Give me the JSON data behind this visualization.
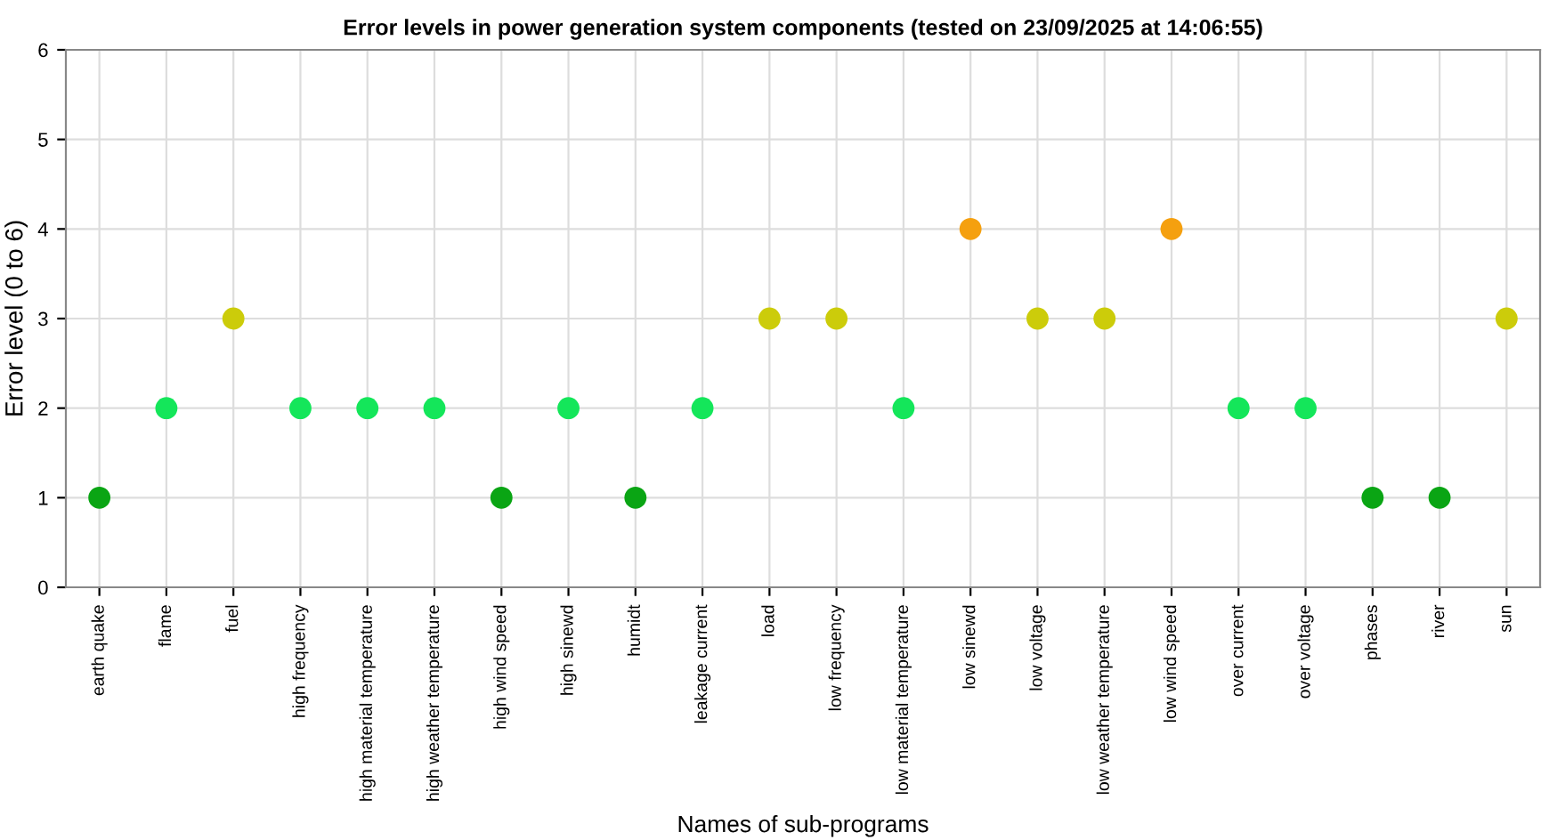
{
  "chart_data": {
    "type": "scatter",
    "title": "Error levels in power generation system components (tested on 23/09/2025 at 14:06:55)",
    "xlabel": "Names of sub-programs",
    "ylabel": "Error level (0 to 6)",
    "categories": [
      "earth quake",
      "flame",
      "fuel",
      "high frequency",
      "high material temperature",
      "high weather temperature",
      "high wind speed",
      "high sinewd",
      "humidt",
      "leakage current",
      "load",
      "low frequency",
      "low material temperature",
      "low sinewd",
      "low voltage",
      "low weather temperature",
      "low wind speed",
      "over current",
      "over voltage",
      "phases",
      "river",
      "sun"
    ],
    "values": [
      1,
      2,
      3,
      2,
      2,
      2,
      1,
      2,
      1,
      2,
      3,
      3,
      2,
      4,
      3,
      3,
      4,
      2,
      2,
      1,
      1,
      3
    ],
    "colors": [
      "#0aa514",
      "#14e65a",
      "#cccc0a",
      "#14e65a",
      "#14e65a",
      "#14e65a",
      "#0aa514",
      "#14e65a",
      "#0aa514",
      "#14e65a",
      "#cccc0a",
      "#cccc0a",
      "#14e65a",
      "#f5a00f",
      "#cccc0a",
      "#cccc0a",
      "#f5a00f",
      "#14e65a",
      "#14e65a",
      "#0aa514",
      "#0aa514",
      "#cccc0a"
    ],
    "ylim": [
      0,
      6
    ],
    "yticks": [
      0,
      1,
      2,
      3,
      4,
      5,
      6
    ],
    "grid": true,
    "marker": "circle"
  }
}
